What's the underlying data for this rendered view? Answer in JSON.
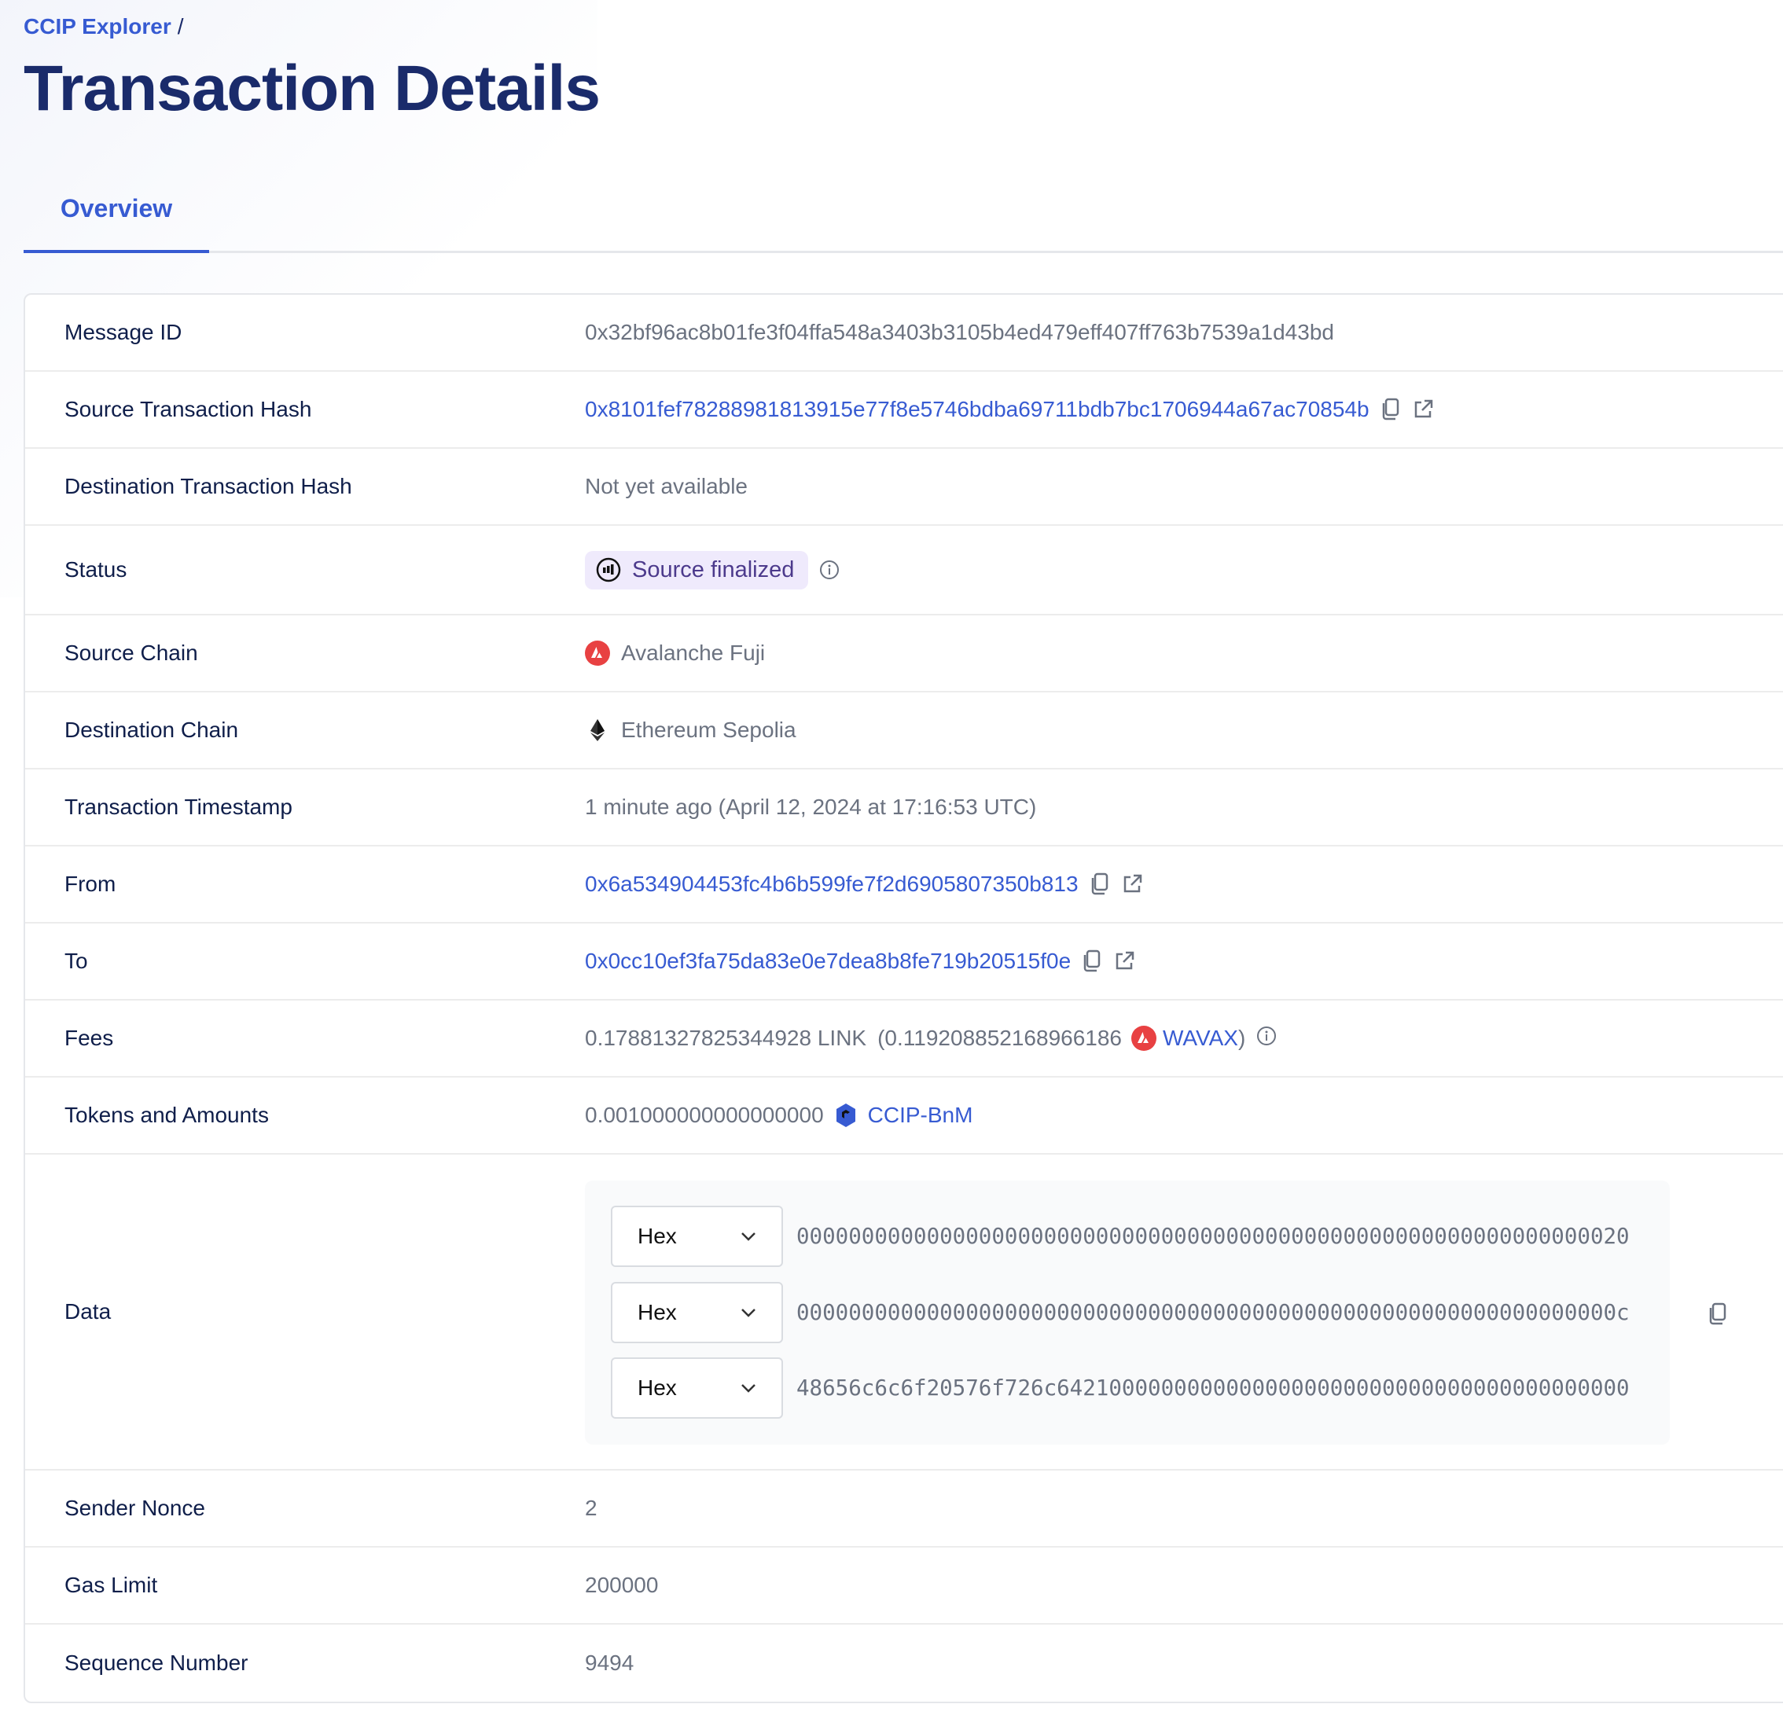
{
  "breadcrumb": {
    "root": "CCIP Explorer",
    "separator": "/"
  },
  "page_title": "Transaction Details",
  "tabs": [
    {
      "label": "Overview",
      "active": true
    }
  ],
  "colors": {
    "accent": "#375bd2",
    "title": "#1a2b6b",
    "status_bg": "#efeafc",
    "avalanche": "#e84142"
  },
  "details": {
    "message_id": {
      "label": "Message ID",
      "value": "0x32bf96ac8b01fe3f04ffa548a3403b3105b4ed479eff407ff763b7539a1d43bd"
    },
    "source_tx_hash": {
      "label": "Source Transaction Hash",
      "value": "0x8101fef78288981813915e77f8e5746bdba69711bdb7bc1706944a67ac70854b"
    },
    "dest_tx_hash": {
      "label": "Destination Transaction Hash",
      "value": "Not yet available"
    },
    "status": {
      "label": "Status",
      "value": "Source finalized"
    },
    "source_chain": {
      "label": "Source Chain",
      "value": "Avalanche Fuji",
      "icon": "avalanche-icon"
    },
    "dest_chain": {
      "label": "Destination Chain",
      "value": "Ethereum Sepolia",
      "icon": "ethereum-icon"
    },
    "timestamp": {
      "label": "Transaction Timestamp",
      "value": "1 minute ago (April 12, 2024 at 17:16:53 UTC)"
    },
    "from": {
      "label": "From",
      "value": "0x6a534904453fc4b6b599fe7f2d6905807350b813"
    },
    "to": {
      "label": "To",
      "value": "0x0cc10ef3fa75da83e0e7dea8b8fe719b20515f0e"
    },
    "fees": {
      "label": "Fees",
      "link_amount": "0.17881327825344928 LINK",
      "native_amount": "(0.119208852168966186",
      "native_token": "WAVAX",
      "close_paren": ")"
    },
    "tokens": {
      "label": "Tokens and Amounts",
      "amount": "0.001000000000000000",
      "token": "CCIP-BnM"
    },
    "data": {
      "label": "Data",
      "rows": [
        {
          "format": "Hex",
          "value": "0000000000000000000000000000000000000000000000000000000000000020"
        },
        {
          "format": "Hex",
          "value": "000000000000000000000000000000000000000000000000000000000000000c"
        },
        {
          "format": "Hex",
          "value": "48656c6c6f20576f726c64210000000000000000000000000000000000000000"
        }
      ]
    },
    "sender_nonce": {
      "label": "Sender Nonce",
      "value": "2"
    },
    "gas_limit": {
      "label": "Gas Limit",
      "value": "200000"
    },
    "sequence_number": {
      "label": "Sequence Number",
      "value": "9494"
    }
  }
}
